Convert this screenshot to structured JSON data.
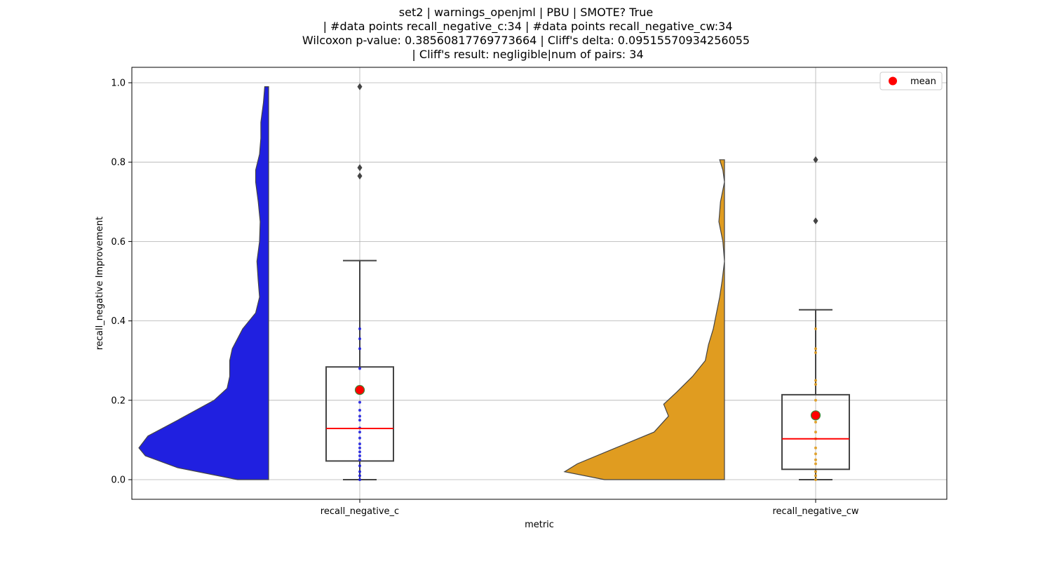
{
  "chart_data": {
    "type": "violin+box",
    "title_lines": [
      "set2 | warnings_openjml | PBU | SMOTE? True",
      " | #data points recall_negative_c:34 | #data points recall_negative_cw:34",
      "Wilcoxon p-value: 0.38560817769773664 | Cliff's delta: 0.09515570934256055",
      " | Cliff's result: negligible|num of pairs: 34"
    ],
    "xlabel": "metric",
    "ylabel": "recall_negative Improvement",
    "ylim": [
      -0.05,
      1.04
    ],
    "yticks": [
      "0.0",
      "0.2",
      "0.4",
      "0.6",
      "0.8",
      "1.0"
    ],
    "ytick_values": [
      0.0,
      0.2,
      0.4,
      0.6,
      0.8,
      1.0
    ],
    "categories": [
      "recall_negative_c",
      "recall_negative_cw"
    ],
    "grid": true,
    "legend": {
      "position": "top-right",
      "label": "mean"
    },
    "colors": {
      "violin_c": "#2020e0",
      "violin_cw": "#e09c20",
      "outline": "#444444",
      "median": "#ff0000",
      "mean_fill": "#ff0000",
      "mean_edge": "#3a8a3a",
      "grid": "#b0b0b0"
    },
    "series": [
      {
        "category": "recall_negative_c",
        "box": {
          "whisker_low": 0.0,
          "q1": 0.047,
          "median": 0.129,
          "q3": 0.284,
          "whisker_high": 0.552
        },
        "mean": 0.226,
        "outliers": [
          0.765,
          0.786,
          0.99
        ],
        "points": [
          0.0,
          0.01,
          0.02,
          0.035,
          0.05,
          0.06,
          0.07,
          0.08,
          0.09,
          0.105,
          0.12,
          0.13,
          0.15,
          0.16,
          0.175,
          0.195,
          0.28,
          0.33,
          0.355,
          0.38
        ],
        "point_color": "#2020e0",
        "density": [
          [
            0.0,
            0.24
          ],
          [
            0.03,
            0.7
          ],
          [
            0.06,
            0.95
          ],
          [
            0.08,
            1.0
          ],
          [
            0.11,
            0.93
          ],
          [
            0.15,
            0.7
          ],
          [
            0.2,
            0.42
          ],
          [
            0.23,
            0.32
          ],
          [
            0.26,
            0.3
          ],
          [
            0.3,
            0.3
          ],
          [
            0.33,
            0.28
          ],
          [
            0.38,
            0.2
          ],
          [
            0.42,
            0.1
          ],
          [
            0.46,
            0.07
          ],
          [
            0.5,
            0.08
          ],
          [
            0.55,
            0.09
          ],
          [
            0.6,
            0.07
          ],
          [
            0.65,
            0.065
          ],
          [
            0.7,
            0.08
          ],
          [
            0.75,
            0.1
          ],
          [
            0.78,
            0.1
          ],
          [
            0.82,
            0.07
          ],
          [
            0.86,
            0.06
          ],
          [
            0.9,
            0.06
          ],
          [
            0.95,
            0.04
          ],
          [
            0.99,
            0.03
          ]
        ]
      },
      {
        "category": "recall_negative_cw",
        "box": {
          "whisker_low": 0.0,
          "q1": 0.026,
          "median": 0.103,
          "q3": 0.214,
          "whisker_high": 0.428
        },
        "mean": 0.162,
        "outliers": [
          0.652,
          0.806
        ],
        "points": [
          0.0,
          0.01,
          0.02,
          0.04,
          0.05,
          0.065,
          0.08,
          0.103,
          0.12,
          0.145,
          0.165,
          0.2,
          0.24,
          0.25,
          0.32,
          0.33,
          0.38
        ],
        "point_color": "#e09c20",
        "density": [
          [
            0.0,
            0.75
          ],
          [
            0.02,
            1.0
          ],
          [
            0.04,
            0.92
          ],
          [
            0.08,
            0.68
          ],
          [
            0.12,
            0.44
          ],
          [
            0.16,
            0.35
          ],
          [
            0.19,
            0.38
          ],
          [
            0.22,
            0.3
          ],
          [
            0.26,
            0.2
          ],
          [
            0.3,
            0.12
          ],
          [
            0.34,
            0.1
          ],
          [
            0.38,
            0.07
          ],
          [
            0.42,
            0.05
          ],
          [
            0.46,
            0.03
          ],
          [
            0.5,
            0.015
          ],
          [
            0.55,
            0.0
          ],
          [
            0.6,
            0.01
          ],
          [
            0.65,
            0.035
          ],
          [
            0.7,
            0.025
          ],
          [
            0.75,
            0.0
          ],
          [
            0.78,
            0.01
          ],
          [
            0.806,
            0.03
          ]
        ]
      }
    ]
  }
}
